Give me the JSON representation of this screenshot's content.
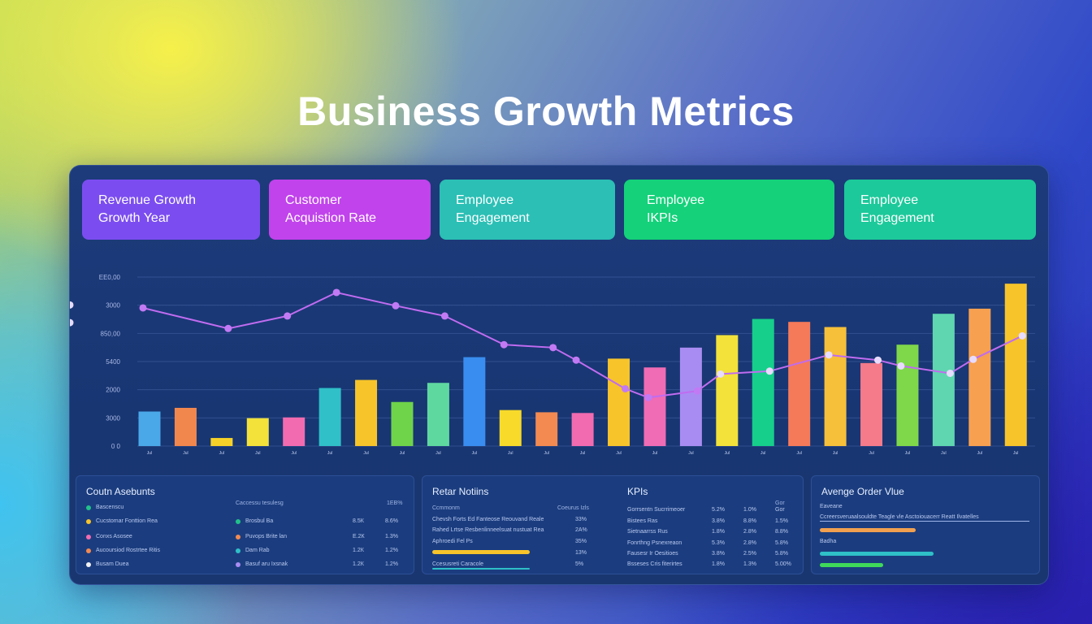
{
  "title": "Business Growth Metrics",
  "kpi_cards": [
    {
      "line1": "Revenue Growth",
      "line2": "Growth Year",
      "color": "#7b4df0"
    },
    {
      "line1": "Customer",
      "line2": "Acquistion Rate",
      "color": "#c143ec"
    },
    {
      "line1": "Employee",
      "line2": "Engagement",
      "color": "#2bbfb5"
    },
    {
      "line1": "Employee",
      "line2": "IKPIs",
      "color": "#14d17a"
    },
    {
      "line1": "Employee",
      "line2": "Engagement",
      "color": "#1cc99a"
    }
  ],
  "chart_data": {
    "type": "bar",
    "y_ticks": [
      "ЕЕ0,00",
      "3000",
      "850,00",
      "5400",
      "2000",
      "3000",
      "0 0"
    ],
    "bar_values": [
      47,
      52,
      11,
      38,
      39,
      79,
      90,
      60,
      86,
      121,
      49,
      46,
      45,
      119,
      107,
      134,
      151,
      173,
      169,
      162,
      113,
      138,
      180,
      187,
      221
    ],
    "bar_colors": [
      "#4aa8e8",
      "#f2874e",
      "#f6d228",
      "#f2e23a",
      "#f26bb0",
      "#2fc0c8",
      "#f7c42a",
      "#6fd44a",
      "#5fd8a0",
      "#3a8df0",
      "#f7da2a",
      "#f28a52",
      "#f26bb0",
      "#f7c42a",
      "#f06cb4",
      "#a98cf2",
      "#f2e23a",
      "#16cf8a",
      "#f57a5a",
      "#f7c03a",
      "#f57a8a",
      "#7ed84a",
      "#5fd6b0",
      "#f6a050",
      "#f7c42a"
    ],
    "x_tick_labels": [
      "Jul",
      "Jul",
      "Jul",
      "Jul",
      "Jul",
      "Jul",
      "Jul",
      "Jul",
      "Jul",
      "Jul",
      "Jul",
      "Jul",
      "Jul",
      "Jul",
      "Jul",
      "Jul",
      "Jul",
      "Jul",
      "Jul",
      "Jul",
      "Jul",
      "Jul",
      "Jul",
      "Jul",
      "Jul"
    ],
    "line_values": [
      188,
      160,
      177,
      209,
      191,
      177,
      138,
      134,
      117,
      78,
      66,
      75,
      98,
      102,
      124,
      117,
      109,
      99,
      118,
      150,
      168,
      192
    ],
    "line_x_index": [
      0,
      2,
      4,
      5,
      7,
      8,
      10,
      11,
      12,
      13,
      14,
      15,
      16,
      17,
      19,
      20,
      21,
      22,
      23,
      24,
      25,
      26
    ],
    "y_max": 230,
    "grid": true
  },
  "bottom_left": {
    "title": "Coutn Asebunts",
    "col_header": "Caccessu tesulesg",
    "col_header2": "1ЕВ%",
    "rows": [
      {
        "label": "Bascenscu",
        "dot": "#21c28a",
        "label2": "",
        "dot2": "",
        "v1": "",
        "v2": ""
      },
      {
        "label": "Cucstomar Fonttion Rea",
        "dot": "#f7c42a",
        "label2": "Brosbul Ba",
        "dot2": "#21c28a",
        "v1": "8.5К",
        "v2": "8.6%"
      },
      {
        "label": "Conxs Asosee",
        "dot": "#f26bb0",
        "label2": "Puvops Brite lan",
        "dot2": "#f28a52",
        "v1": "Е.2К",
        "v2": "1.3%"
      },
      {
        "label": "Aucoursiod Rostrtee Ritis",
        "dot": "#f28a52",
        "label2": "Dam Rab",
        "dot2": "#2fc0c8",
        "v1": "1.2К",
        "v2": "1.2%"
      },
      {
        "label": "Busam Duea",
        "dot": "#f2f2f2",
        "label2": "Basuf aru Ixsnak",
        "dot2": "#a98cf2",
        "v1": "1.2К",
        "v2": "1.2%"
      }
    ]
  },
  "bottom_mid": {
    "title": "Retar Notiins",
    "kpi_title": "KPIs",
    "left_header": "Ccmmonm",
    "left_header2": "Coeurus Izls",
    "left_rows": [
      {
        "label": "Chevsh Forts Ed Fanteose Reouvand Reale",
        "val": "33%"
      },
      {
        "label": "Rahed Lrtse Resbenlinneelsuat nustuat Rea",
        "val": "2А%"
      },
      {
        "label": "Aphroedi Fel Ps",
        "val": "35%"
      },
      {
        "label": "",
        "val": "13%"
      },
      {
        "label": "Ccesusreti Caracole",
        "val": "5%"
      }
    ],
    "right_rows": [
      {
        "label": "Gorrsentn Sucrrimeoer",
        "v1": "5.2%",
        "v2": "1.0%",
        "v3": "Gor"
      },
      {
        "label": "Bistees Ras",
        "v1": "3.8%",
        "v2": "8.8%",
        "v3": "1.5%"
      },
      {
        "label": "Sietnaarrss Rus",
        "v1": "1.8%",
        "v2": "2.8%",
        "v3": "8.8%"
      },
      {
        "label": "Fonrthng Psnexreaon",
        "v1": "5.3%",
        "v2": "2.8%",
        "v3": "5.8%"
      },
      {
        "label": "Fausesr Ir Oesitioes",
        "v1": "3.8%",
        "v2": "2.5%",
        "v3": "5.8%"
      },
      {
        "label": "Bsseses Cris fiterirtes",
        "v1": "1.8%",
        "v2": "1.3%",
        "v3": "5.00%"
      }
    ],
    "right_header": "Gor"
  },
  "bottom_right": {
    "title": "Avenge Order Vlue",
    "sub1": "Eaveane",
    "sub2": "Ccreersveruaalsouldte Teagle vle Asctoiouacerr Reatt Ilvatelles",
    "sub3": "Badha",
    "bars": [
      {
        "color": "#f2a050",
        "fraction": 0.6
      },
      {
        "color": "#2fc0c8",
        "fraction": 0.7
      },
      {
        "color": "#3fd85a",
        "fraction": 0.4
      }
    ]
  }
}
